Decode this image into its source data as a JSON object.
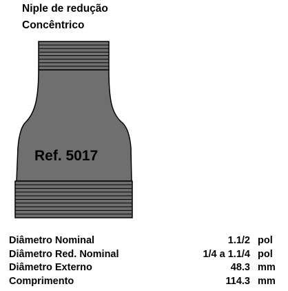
{
  "title": {
    "line1": "Niple de redução",
    "line2": "Concêntrico"
  },
  "drawing": {
    "ref_label": "Ref. 5017",
    "body_color": "#6f6f6f",
    "outline_color": "#000000"
  },
  "specs": [
    {
      "label": "Diâmetro Nominal",
      "value": "1.1/2",
      "unit": "pol"
    },
    {
      "label": "Diâmetro Red. Nominal",
      "value": "1/4 a 1.1/4",
      "unit": "pol"
    },
    {
      "label": "Diâmetro Externo",
      "value": "48.3",
      "unit": "mm"
    },
    {
      "label": "Comprimento",
      "value": "114.3",
      "unit": "mm"
    }
  ]
}
